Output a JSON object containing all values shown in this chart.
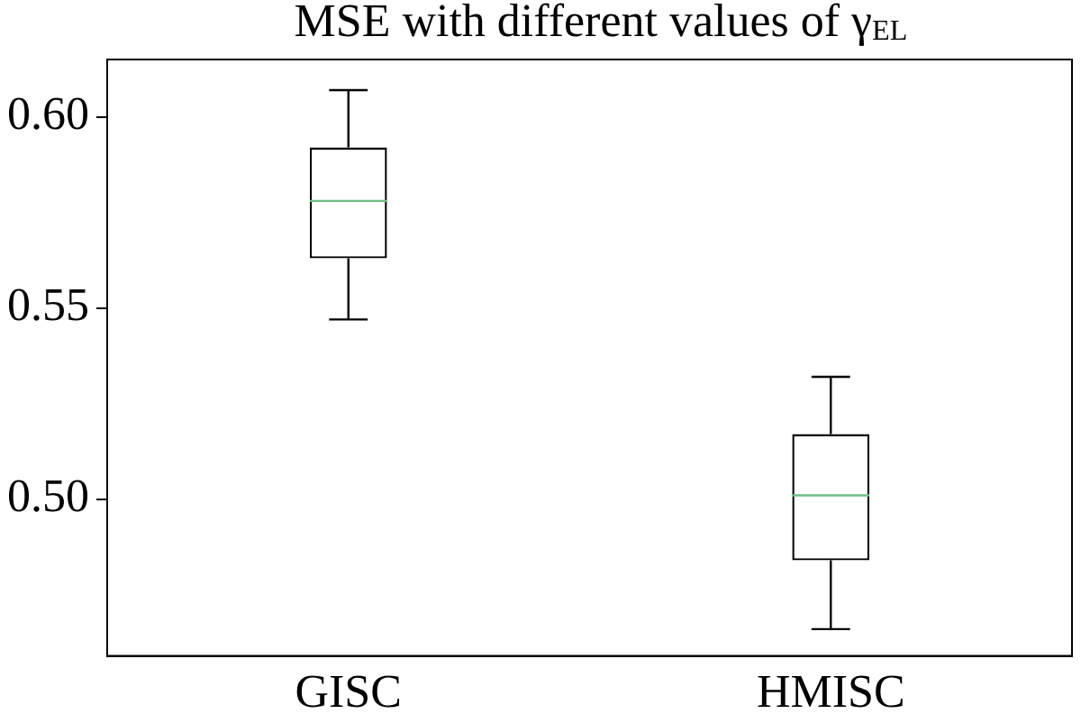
{
  "chart_data": {
    "type": "box",
    "title": "MSE with different values of γ$_{EL}$",
    "categories": [
      "GISC",
      "HMISC"
    ],
    "boxes": [
      {
        "low": 0.547,
        "q1": 0.563,
        "median": 0.578,
        "q3": 0.592,
        "high": 0.607
      },
      {
        "low": 0.466,
        "q1": 0.484,
        "median": 0.501,
        "q3": 0.517,
        "high": 0.532
      }
    ],
    "color": "#000000",
    "ylim": [
      0.459,
      0.615
    ],
    "yticks": [
      {
        "value": 0.5,
        "label": "0.50"
      },
      {
        "value": 0.55,
        "label": "0.55"
      },
      {
        "value": 0.6,
        "label": "0.60"
      }
    ],
    "grid": false
  }
}
